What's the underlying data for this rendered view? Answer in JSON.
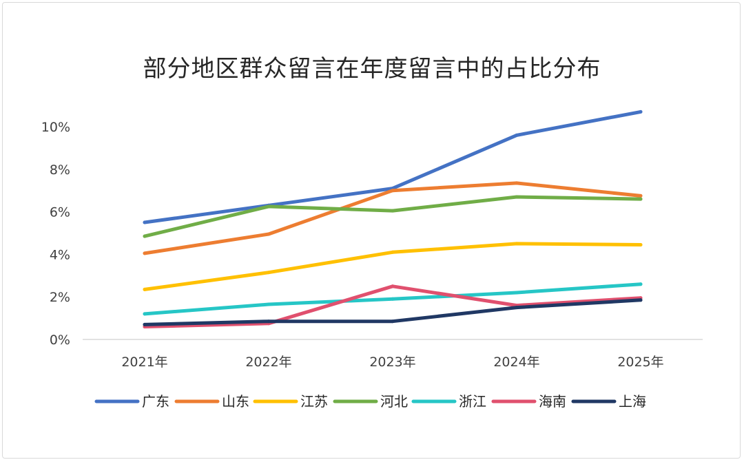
{
  "chart_data": {
    "type": "line",
    "title": "部分地区群众留言在年度留言中的占比分布",
    "xlabel": "",
    "ylabel": "",
    "categories": [
      "2021年",
      "2022年",
      "2023年",
      "2024年",
      "2025年"
    ],
    "ylim": [
      0,
      10
    ],
    "yticks": [
      0,
      2,
      4,
      6,
      8,
      10
    ],
    "ytick_labels": [
      "0%",
      "2%",
      "4%",
      "6%",
      "8%",
      "10%"
    ],
    "grid": false,
    "legend_position": "bottom",
    "series": [
      {
        "name": "广东",
        "color": "#4472c4",
        "values": [
          5.5,
          6.3,
          7.1,
          9.6,
          10.7
        ]
      },
      {
        "name": "山东",
        "color": "#ed7d31",
        "values": [
          4.05,
          4.95,
          7.0,
          7.35,
          6.75
        ]
      },
      {
        "name": "江苏",
        "color": "#ffc000",
        "values": [
          2.35,
          3.15,
          4.1,
          4.5,
          4.45
        ]
      },
      {
        "name": "河北",
        "color": "#70ad47",
        "values": [
          4.85,
          6.25,
          6.05,
          6.7,
          6.6
        ]
      },
      {
        "name": "浙江",
        "color": "#26c6c6",
        "values": [
          1.2,
          1.65,
          1.9,
          2.2,
          2.6
        ]
      },
      {
        "name": "海南",
        "color": "#e0506e",
        "values": [
          0.6,
          0.75,
          2.5,
          1.6,
          1.95
        ]
      },
      {
        "name": "上海",
        "color": "#203864",
        "values": [
          0.7,
          0.85,
          0.85,
          1.5,
          1.85
        ]
      }
    ]
  }
}
